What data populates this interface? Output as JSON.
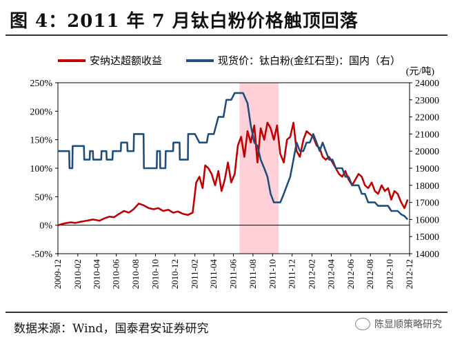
{
  "header": {
    "title": "图 4：2011 年 7 月钛白粉价格触顶回落"
  },
  "footer": {
    "source": "数据来源：Wind，国泰君安证券研究",
    "watermark": "陈显顺策略研究"
  },
  "colors": {
    "red_series": "#c00000",
    "blue_series": "#1f4e79",
    "highlight": "#ffd0d8"
  },
  "chart_data": {
    "type": "line",
    "legend_position": "top",
    "y_right_unit": "(元/吨)",
    "xlim": [
      "2009-12",
      "2012-12"
    ],
    "x_ticks": [
      "2009-12",
      "2010-02",
      "2010-04",
      "2010-06",
      "2010-08",
      "2010-10",
      "2010-12",
      "2011-02",
      "2011-04",
      "2011-06",
      "2011-08",
      "2011-10",
      "2011-12",
      "2012-02",
      "2012-04",
      "2012-06",
      "2012-08",
      "2012-10",
      "2012-12"
    ],
    "y_left": {
      "ticks": [
        "-50%",
        "0%",
        "50%",
        "100%",
        "150%",
        "200%",
        "250%"
      ],
      "min": -50,
      "max": 250
    },
    "y_right": {
      "ticks": [
        "14000",
        "15000",
        "16000",
        "17000",
        "18000",
        "19000",
        "20000",
        "21000",
        "22000",
        "23000",
        "24000"
      ],
      "min": 14000,
      "max": 24000
    },
    "shaded_range": [
      "2011-06-20",
      "2011-10-20"
    ],
    "series": [
      {
        "name": "安纳达超额收益",
        "axis": "left",
        "color": "#c00000",
        "x": [
          "2009-12-01",
          "2009-12-20",
          "2010-01-10",
          "2010-01-25",
          "2010-02-10",
          "2010-03-01",
          "2010-03-20",
          "2010-04-10",
          "2010-04-25",
          "2010-05-10",
          "2010-05-25",
          "2010-06-10",
          "2010-06-25",
          "2010-07-10",
          "2010-07-25",
          "2010-08-10",
          "2010-08-25",
          "2010-09-10",
          "2010-09-25",
          "2010-10-10",
          "2010-10-25",
          "2010-11-10",
          "2010-11-25",
          "2010-12-10",
          "2010-12-25",
          "2011-01-10",
          "2011-01-25",
          "2011-02-05",
          "2011-02-15",
          "2011-02-25",
          "2011-03-05",
          "2011-03-15",
          "2011-03-25",
          "2011-04-05",
          "2011-04-15",
          "2011-04-25",
          "2011-05-05",
          "2011-05-15",
          "2011-05-25",
          "2011-06-05",
          "2011-06-15",
          "2011-06-25",
          "2011-07-05",
          "2011-07-15",
          "2011-07-25",
          "2011-08-05",
          "2011-08-15",
          "2011-08-25",
          "2011-09-05",
          "2011-09-15",
          "2011-09-25",
          "2011-10-05",
          "2011-10-15",
          "2011-10-25",
          "2011-11-05",
          "2011-11-15",
          "2011-11-25",
          "2011-12-05",
          "2011-12-15",
          "2011-12-25",
          "2012-01-05",
          "2012-01-15",
          "2012-01-25",
          "2012-02-05",
          "2012-02-15",
          "2012-02-25",
          "2012-03-05",
          "2012-03-15",
          "2012-03-25",
          "2012-04-05",
          "2012-04-15",
          "2012-04-25",
          "2012-05-05",
          "2012-05-15",
          "2012-05-25",
          "2012-06-05",
          "2012-06-15",
          "2012-06-25",
          "2012-07-05",
          "2012-07-15",
          "2012-07-25",
          "2012-08-05",
          "2012-08-15",
          "2012-08-25",
          "2012-09-05",
          "2012-09-15",
          "2012-09-25",
          "2012-10-05",
          "2012-10-15",
          "2012-10-25",
          "2012-11-05",
          "2012-11-15",
          "2012-11-25"
        ],
        "values": [
          0,
          3,
          5,
          4,
          6,
          8,
          10,
          8,
          12,
          15,
          14,
          20,
          25,
          22,
          28,
          38,
          35,
          30,
          28,
          30,
          25,
          27,
          22,
          24,
          20,
          18,
          22,
          75,
          85,
          65,
          105,
          100,
          90,
          70,
          95,
          60,
          80,
          110,
          75,
          90,
          140,
          155,
          120,
          165,
          145,
          175,
          110,
          170,
          150,
          180,
          170,
          150,
          175,
          125,
          110,
          150,
          155,
          180,
          130,
          120,
          150,
          165,
          160,
          155,
          140,
          135,
          120,
          115,
          120,
          110,
          100,
          90,
          85,
          95,
          80,
          70,
          80,
          90,
          85,
          70,
          65,
          75,
          60,
          55,
          70,
          60,
          65,
          45,
          60,
          55,
          40,
          30,
          45
        ]
      },
      {
        "name": "现货价：钛白粉(金红石型)：国内（右）",
        "axis": "right",
        "color": "#1f4e79",
        "x": [
          "2009-12-01",
          "2010-01-05",
          "2010-01-06",
          "2010-01-15",
          "2010-01-16",
          "2010-02-20",
          "2010-02-21",
          "2010-03-10",
          "2010-03-11",
          "2010-03-20",
          "2010-03-21",
          "2010-04-15",
          "2010-04-16",
          "2010-05-01",
          "2010-05-02",
          "2010-05-20",
          "2010-05-21",
          "2010-06-15",
          "2010-06-16",
          "2010-07-05",
          "2010-07-06",
          "2010-07-25",
          "2010-07-26",
          "2010-08-25",
          "2010-08-26",
          "2010-09-10",
          "2010-09-11",
          "2010-10-05",
          "2010-10-06",
          "2010-10-15",
          "2010-10-16",
          "2010-11-01",
          "2010-11-02",
          "2010-11-25",
          "2010-11-26",
          "2010-12-15",
          "2010-12-16",
          "2011-01-10",
          "2011-01-11",
          "2011-02-01",
          "2011-02-15",
          "2011-03-10",
          "2011-03-15",
          "2011-04-01",
          "2011-04-15",
          "2011-05-01",
          "2011-05-10",
          "2011-05-25",
          "2011-06-05",
          "2011-06-15",
          "2011-07-01",
          "2011-07-15",
          "2011-07-25",
          "2011-08-05",
          "2011-08-15",
          "2011-08-25",
          "2011-09-05",
          "2011-09-15",
          "2011-09-25",
          "2011-10-05",
          "2011-10-15",
          "2011-10-25",
          "2011-11-05",
          "2011-11-15",
          "2011-11-25",
          "2011-12-05",
          "2011-12-15",
          "2011-12-25",
          "2012-01-05",
          "2012-01-15",
          "2012-01-25",
          "2012-02-05",
          "2012-02-15",
          "2012-02-25",
          "2012-03-05",
          "2012-03-15",
          "2012-03-25",
          "2012-04-05",
          "2012-04-15",
          "2012-04-25",
          "2012-05-05",
          "2012-05-15",
          "2012-05-25",
          "2012-06-05",
          "2012-06-15",
          "2012-06-25",
          "2012-07-05",
          "2012-07-15",
          "2012-07-25",
          "2012-08-05",
          "2012-08-15",
          "2012-08-25",
          "2012-09-05",
          "2012-09-15",
          "2012-09-25",
          "2012-10-05",
          "2012-10-15",
          "2012-10-25",
          "2012-11-05",
          "2012-11-15",
          "2012-11-25"
        ],
        "values": [
          20000,
          20000,
          19000,
          19000,
          20300,
          20300,
          19500,
          19500,
          20000,
          20000,
          19500,
          19500,
          20000,
          20000,
          19500,
          19500,
          20000,
          20000,
          20500,
          20500,
          20000,
          20000,
          21000,
          21000,
          19000,
          19000,
          19000,
          19000,
          20000,
          20000,
          19000,
          19000,
          20000,
          20000,
          20500,
          20500,
          19500,
          19500,
          21000,
          21000,
          20500,
          20500,
          21000,
          21000,
          22000,
          22000,
          23000,
          23000,
          23400,
          23400,
          23400,
          22800,
          21500,
          20500,
          20300,
          19500,
          19000,
          18500,
          17500,
          17000,
          17000,
          17000,
          17500,
          18000,
          18500,
          19500,
          20500,
          20000,
          20000,
          20500,
          20500,
          21000,
          20500,
          20000,
          20500,
          20000,
          19500,
          19500,
          19000,
          19000,
          19000,
          18500,
          18500,
          18000,
          18000,
          18000,
          17500,
          17500,
          17000,
          17000,
          17000,
          16800,
          16800,
          16800,
          16800,
          16500,
          16500,
          16500,
          16300,
          16200,
          16000
        ]
      }
    ]
  }
}
